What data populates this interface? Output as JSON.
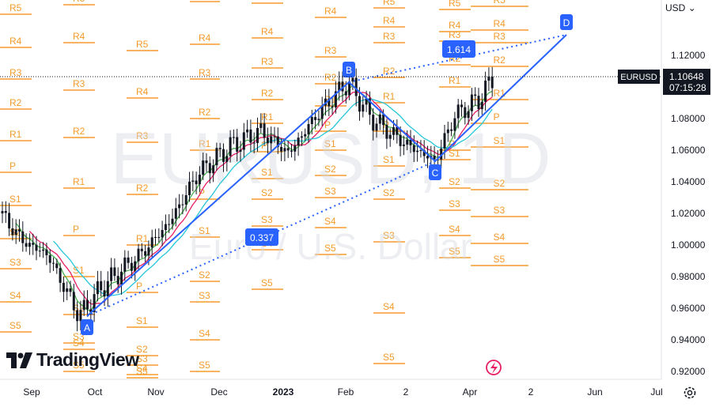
{
  "toolbar": {
    "currency": "USD"
  },
  "branding": {
    "logo_text": "TradingView"
  },
  "watermark": {
    "symbol": "EURUSD, 1D",
    "description": "Euro / U.S. Dollar"
  },
  "colors": {
    "candles": "#131722",
    "pivots": "#f59b2b",
    "pattern": "#2962ff",
    "ma_fast": "#4caf50",
    "ma_mid": "#e91e63",
    "ma_slow": "#26c6da",
    "text": "#131722"
  },
  "chart_data": {
    "type": "candlestick",
    "symbol_label": "EURUSD",
    "last_price": "1.10648",
    "countdown": "07:15:28",
    "currency": "USD",
    "ylim": [
      0.915,
      1.155
    ],
    "y_ticks": [
      "1.12000",
      "1.10000",
      "1.08000",
      "1.06000",
      "1.04000",
      "1.02000",
      "1.00000",
      "0.98000",
      "0.96000",
      "0.94000",
      "0.92000"
    ],
    "x_ticks": [
      "Sep",
      "Oct",
      "Nov",
      "Dec",
      "2023",
      "Feb",
      "2",
      "Apr",
      "2",
      "Jun",
      "Jul"
    ],
    "pattern": {
      "points": [
        {
          "label": "A",
          "value": 0.955
        },
        {
          "label": "B",
          "value": 1.103
        },
        {
          "label": "C",
          "value": 1.053
        },
        {
          "label": "D",
          "value": 1.133
        }
      ],
      "ratios": [
        "0.337",
        "1.614"
      ]
    },
    "pivot_labels": [
      "R5",
      "R4",
      "R3",
      "R2",
      "R1",
      "P",
      "S1",
      "S2",
      "S3",
      "S4",
      "S5"
    ],
    "icons": [
      "lightning-icon",
      "settings-icon"
    ]
  }
}
